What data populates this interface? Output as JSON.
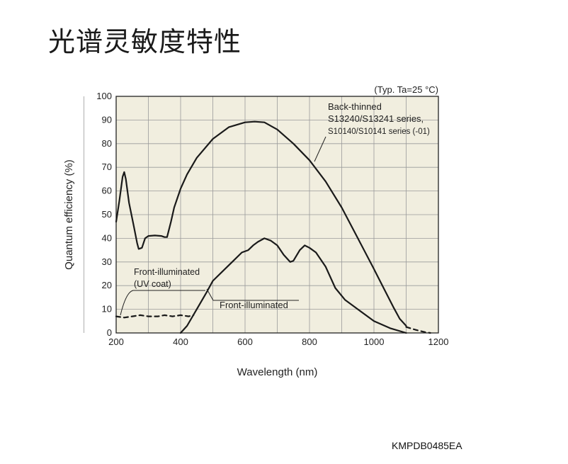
{
  "page": {
    "title": "光谱灵敏度特性",
    "figure_code": "KMPDB0485EA"
  },
  "chart_data": {
    "type": "line",
    "title": "",
    "conditions": "(Typ. Ta=25 °C)",
    "xlabel": "Wavelength (nm)",
    "ylabel": "Quantum efficiency (%)",
    "xlim": [
      200,
      1200
    ],
    "ylim": [
      0,
      100
    ],
    "x_ticks": [
      200,
      400,
      600,
      800,
      1000,
      1200
    ],
    "y_ticks": [
      0,
      10,
      20,
      30,
      40,
      50,
      60,
      70,
      80,
      90,
      100
    ],
    "grid": true,
    "plot_background": "#f1eedf",
    "line_color": "#1a1a1a",
    "series": [
      {
        "name": "Back-thinned S13240/S13241 series, S10140/S10141 series (-01)",
        "style": "solid",
        "points": [
          [
            200,
            47
          ],
          [
            210,
            56
          ],
          [
            220,
            66
          ],
          [
            225,
            68
          ],
          [
            230,
            65
          ],
          [
            240,
            55
          ],
          [
            255,
            45
          ],
          [
            265,
            38
          ],
          [
            270,
            35.5
          ],
          [
            280,
            36
          ],
          [
            290,
            40
          ],
          [
            300,
            41
          ],
          [
            320,
            41.2
          ],
          [
            340,
            41
          ],
          [
            350,
            40.5
          ],
          [
            358,
            40.5
          ],
          [
            370,
            47
          ],
          [
            380,
            53
          ],
          [
            400,
            61
          ],
          [
            420,
            67
          ],
          [
            450,
            74
          ],
          [
            500,
            82
          ],
          [
            550,
            87
          ],
          [
            600,
            89
          ],
          [
            630,
            89.3
          ],
          [
            660,
            89
          ],
          [
            700,
            86
          ],
          [
            750,
            80
          ],
          [
            800,
            73
          ],
          [
            850,
            64
          ],
          [
            900,
            53
          ],
          [
            950,
            40
          ],
          [
            1000,
            27
          ],
          [
            1030,
            19
          ],
          [
            1060,
            11
          ],
          [
            1080,
            6
          ],
          [
            1100,
            3
          ]
        ]
      },
      {
        "name": "Front-illuminated",
        "style": "solid",
        "points": [
          [
            400,
            0
          ],
          [
            420,
            3
          ],
          [
            450,
            10
          ],
          [
            480,
            17
          ],
          [
            500,
            22
          ],
          [
            530,
            26
          ],
          [
            560,
            30
          ],
          [
            590,
            34
          ],
          [
            610,
            35
          ],
          [
            625,
            37
          ],
          [
            640,
            38.5
          ],
          [
            660,
            40
          ],
          [
            680,
            39
          ],
          [
            700,
            37
          ],
          [
            720,
            33
          ],
          [
            740,
            30
          ],
          [
            750,
            30.5
          ],
          [
            770,
            35
          ],
          [
            785,
            37
          ],
          [
            800,
            36
          ],
          [
            820,
            34
          ],
          [
            850,
            28
          ],
          [
            880,
            19
          ],
          [
            910,
            14
          ],
          [
            950,
            10
          ],
          [
            1000,
            5
          ],
          [
            1050,
            2
          ],
          [
            1100,
            0
          ]
        ]
      },
      {
        "name": "Front-illuminated (UV coat)",
        "style": "dashed",
        "points": [
          [
            200,
            7
          ],
          [
            225,
            6.5
          ],
          [
            250,
            7
          ],
          [
            275,
            7.5
          ],
          [
            300,
            7
          ],
          [
            330,
            7
          ],
          [
            350,
            7.5
          ],
          [
            375,
            7
          ],
          [
            400,
            7.5
          ],
          [
            425,
            7
          ],
          [
            440,
            7.5
          ]
        ]
      },
      {
        "name": "Back-thinned tail",
        "style": "dashed",
        "points": [
          [
            1100,
            2.5
          ],
          [
            1130,
            1.3
          ],
          [
            1160,
            0.3
          ],
          [
            1175,
            0
          ]
        ]
      }
    ],
    "annotations": {
      "back_thinned": [
        "Back-thinned",
        "S13240/S13241 series,",
        "S10140/S10141 series (-01)"
      ],
      "front_uv": [
        "Front-illuminated",
        "(UV coat)"
      ],
      "front": "Front-illuminated"
    }
  }
}
